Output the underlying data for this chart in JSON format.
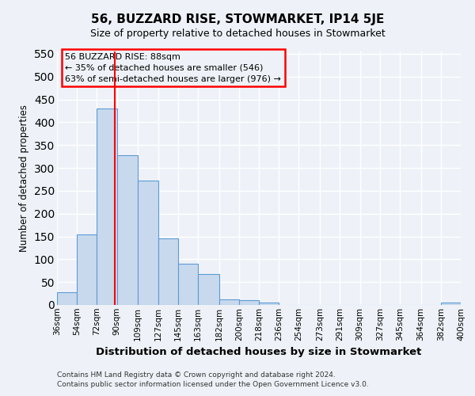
{
  "title": "56, BUZZARD RISE, STOWMARKET, IP14 5JE",
  "subtitle": "Size of property relative to detached houses in Stowmarket",
  "xlabel": "Distribution of detached houses by size in Stowmarket",
  "ylabel": "Number of detached properties",
  "bar_values": [
    28,
    155,
    430,
    328,
    272,
    145,
    90,
    68,
    12,
    10,
    5,
    0,
    0,
    0,
    0,
    0,
    0,
    0,
    0,
    5
  ],
  "bin_edges": [
    36,
    54,
    72,
    90,
    109,
    127,
    145,
    163,
    182,
    200,
    218,
    236,
    254,
    273,
    291,
    309,
    327,
    345,
    364,
    382,
    400
  ],
  "tick_labels": [
    "36sqm",
    "54sqm",
    "72sqm",
    "90sqm",
    "109sqm",
    "127sqm",
    "145sqm",
    "163sqm",
    "182sqm",
    "200sqm",
    "218sqm",
    "236sqm",
    "254sqm",
    "273sqm",
    "291sqm",
    "309sqm",
    "327sqm",
    "345sqm",
    "364sqm",
    "382sqm",
    "400sqm"
  ],
  "bar_color": "#c9d9ed",
  "bar_edge_color": "#5b9bd5",
  "vline_x": 88,
  "vline_color": "red",
  "annotation_title": "56 BUZZARD RISE: 88sqm",
  "annotation_line1": "← 35% of detached houses are smaller (546)",
  "annotation_line2": "63% of semi-detached houses are larger (976) →",
  "annotation_box_color": "red",
  "ylim": [
    0,
    555
  ],
  "yticks": [
    0,
    50,
    100,
    150,
    200,
    250,
    300,
    350,
    400,
    450,
    500,
    550
  ],
  "footer1": "Contains HM Land Registry data © Crown copyright and database right 2024.",
  "footer2": "Contains public sector information licensed under the Open Government Licence v3.0.",
  "bg_color": "#eef2f8",
  "grid_color": "white"
}
